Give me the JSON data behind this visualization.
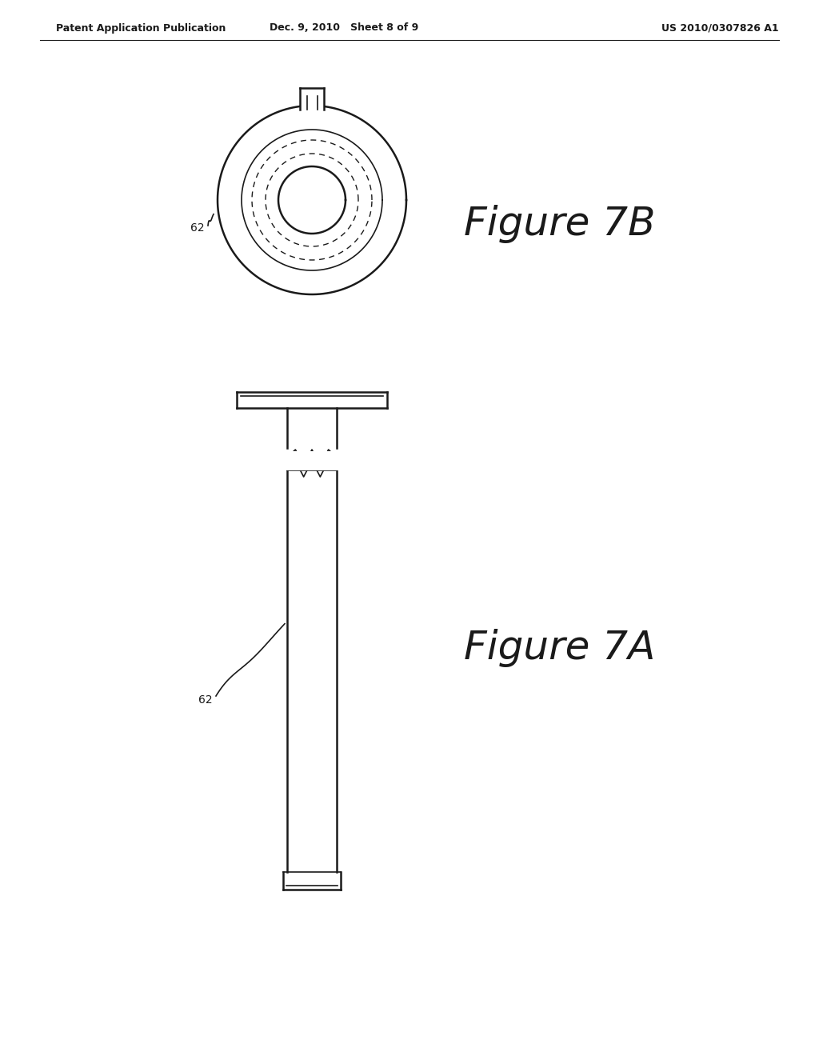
{
  "bg_color": "#ffffff",
  "line_color": "#1a1a1a",
  "header_left": "Patent Application Publication",
  "header_center": "Dec. 9, 2010   Sheet 8 of 9",
  "header_right": "US 2010/0307826 A1",
  "fig7b_label": "Figure 7B",
  "fig7a_label": "Figure 7A",
  "label_62": "62",
  "header_fontsize": 9,
  "label_fontsize": 10,
  "figure_label_fontsize": 36
}
